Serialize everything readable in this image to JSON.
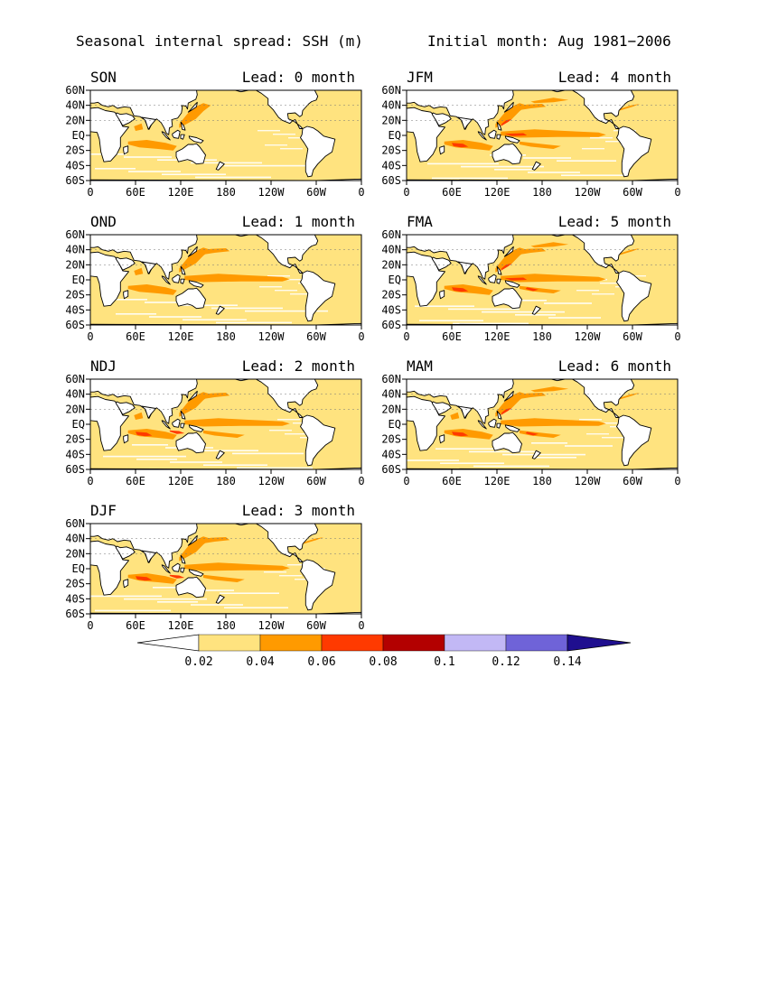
{
  "title": {
    "left": "Seasonal internal spread: SSH (m)",
    "right": "Initial month: Aug 1981−2006"
  },
  "panels": [
    {
      "season": "SON",
      "lead": "Lead: 0 month"
    },
    {
      "season": "OND",
      "lead": "Lead: 1 month"
    },
    {
      "season": "NDJ",
      "lead": "Lead: 2 month"
    },
    {
      "season": "DJF",
      "lead": "Lead: 3 month"
    },
    {
      "season": "JFM",
      "lead": "Lead: 4 month"
    },
    {
      "season": "FMA",
      "lead": "Lead: 5 month"
    },
    {
      "season": "MAM",
      "lead": "Lead: 6 month"
    }
  ],
  "axes": {
    "lat_ticks": [
      "60N",
      "40N",
      "20N",
      "EQ",
      "20S",
      "40S",
      "60S"
    ],
    "lon_ticks": [
      "0",
      "60E",
      "120E",
      "180",
      "120W",
      "60W",
      "0"
    ]
  },
  "colorbar": {
    "labels": [
      "0.02",
      "0.04",
      "0.06",
      "0.08",
      "0.1",
      "0.12",
      "0.14"
    ],
    "colors": [
      "#ffffff",
      "#ffe37f",
      "#ff9a00",
      "#ff3a00",
      "#b30000",
      "#c2b8f5",
      "#6f63d8",
      "#1f0f8f"
    ]
  },
  "map_colors": {
    "ocean_base": "#ffe37f",
    "level_2": "#ff9a00",
    "level_3": "#ff3a00",
    "land": "#ffffff",
    "coast": "#000000"
  },
  "chart_data": {
    "type": "heatmap",
    "variable": "SSH internal spread (m)",
    "contour_levels": [
      0.02,
      0.04,
      0.06,
      0.08,
      0.1,
      0.12,
      0.14
    ],
    "panels": [
      {
        "season": "SON",
        "lead_month": 0,
        "max_level": 0.06
      },
      {
        "season": "OND",
        "lead_month": 1,
        "max_level": 0.06
      },
      {
        "season": "NDJ",
        "lead_month": 2,
        "max_level": 0.08
      },
      {
        "season": "DJF",
        "lead_month": 3,
        "max_level": 0.08
      },
      {
        "season": "JFM",
        "lead_month": 4,
        "max_level": 0.08
      },
      {
        "season": "FMA",
        "lead_month": 5,
        "max_level": 0.08
      },
      {
        "season": "MAM",
        "lead_month": 6,
        "max_level": 0.08
      }
    ]
  }
}
